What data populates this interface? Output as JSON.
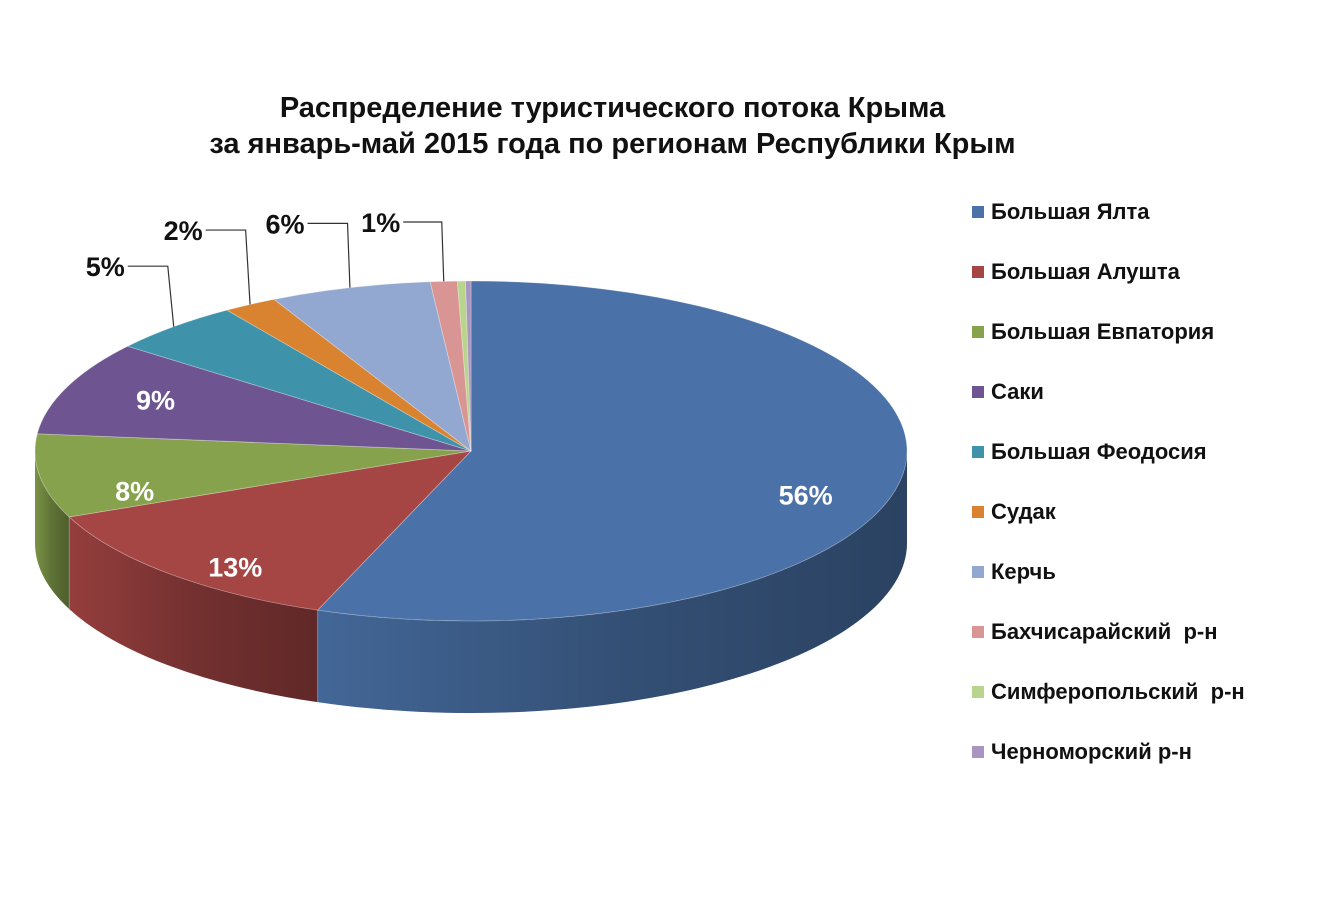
{
  "chart_data": {
    "type": "pie",
    "title_lines": [
      "Распределение туристического потока Крыма",
      "за январь-май 2015 года по регионам Республики Крым"
    ],
    "legend_position": "right",
    "slices": [
      {
        "name": "Большая Ялта",
        "value": 56,
        "label": "56%",
        "color": "#4a72a8"
      },
      {
        "name": "Большая Алушта",
        "value": 13,
        "label": "13%",
        "color": "#a54544"
      },
      {
        "name": "Большая Евпатория",
        "value": 8,
        "label": "8%",
        "color": "#87a24d"
      },
      {
        "name": "Саки",
        "value": 9,
        "label": "9%",
        "color": "#6e5591"
      },
      {
        "name": "Большая Феодосия",
        "value": 5,
        "label": "5%",
        "color": "#3e93ab"
      },
      {
        "name": "Судак",
        "value": 2,
        "label": "2%",
        "color": "#d9822f"
      },
      {
        "name": "Керчь",
        "value": 6,
        "label": "6%",
        "color": "#93a8d0"
      },
      {
        "name": "Бахчисарайский  р-н",
        "value": 1,
        "label": "1%",
        "color": "#d99593"
      },
      {
        "name": "Симферопольский  р-н",
        "value": 0.3,
        "label": "",
        "color": "#b9d48c"
      },
      {
        "name": "Черноморский р-н",
        "value": 0.2,
        "label": "",
        "color": "#a895c1"
      }
    ]
  }
}
